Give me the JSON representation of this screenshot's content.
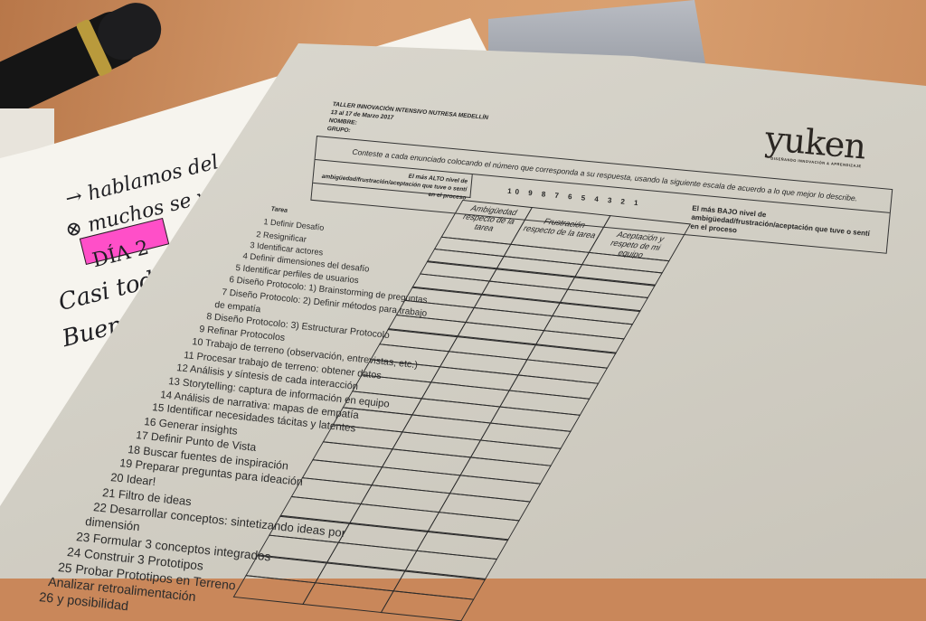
{
  "document": {
    "header": [
      "TALLER INNOVACIÓN INTENSIVO NUTRESA MEDELLÍN",
      "13 al 17 de Marzo 2017",
      "NOMBRE:",
      "GRUPO:"
    ],
    "instruction": "Conteste a cada enunciado colocando el número que corresponda a su respuesta, usando la siguiente escala de acuerdo a lo que mejor lo describe.",
    "high_label": "El más ALTO nivel de ambigüedad/frustración/aceptación que tuve o sentí en el proceso",
    "scale": "10 9 8 7 6 5 4 3 2 1",
    "low_label": "El más BAJO nivel de ambigüedad/frustración/aceptación que tuve o sentí en el proceso",
    "logo": "yuken",
    "logo_tagline": "DISEÑANDO INNOVACIÓN & APRENDIZAJE",
    "task_header": "Tarea",
    "tasks": [
      "1 Definir Desafío",
      "2 Resignificar",
      "3 Identificar actores",
      "4 Definir dimensiones del desafío",
      "5 Identificar perfiles de usuarios",
      "6 Diseño Protocolo: 1) Brainstorming de preguntas",
      "7 Diseño Protocolo: 2) Definir métodos para trabajo",
      "de empatía",
      "8 Diseño Protocolo: 3) Estructurar Protocolo",
      "9 Refinar Protocolos",
      "10 Trabajo de terreno (observación, entrevistas, etc.)",
      "11 Procesar trabajo de terreno: obtener datos",
      "12 Análisis y síntesis de cada interacción",
      "13 Storytelling: captura de información en equipo",
      "14 Análisis de narrativa: mapas de empatía",
      "15 Identificar necesidades tácitas y latentes",
      "16 Generar insights",
      "17 Definir Punto de Vista",
      "18 Buscar fuentes de inspiración",
      "19 Preparar preguntas para ideación",
      "20 Idear!",
      "21 Filtro de ideas",
      "22 Desarrollar conceptos: sintetizando ideas por",
      "dimensión",
      "23 Formular 3 conceptos integrados",
      "24 Construir 3 Prototipos",
      "25 Probar Prototipos en Terreno",
      "Analizar retroalimentación",
      "26 y posibilidad"
    ],
    "columns": [
      "Ambigüedad respecto de la tarea",
      "Frustración respecto de la tarea",
      "Aceptación y respeto de mi equipo"
    ]
  },
  "notebook": {
    "lines": [
      "→ hablamos del consu",
      "⊗ muchos se van",
      "DÍA 2",
      "Casi todo",
      "Buena"
    ],
    "highlight_color": "#ff4fc8"
  }
}
